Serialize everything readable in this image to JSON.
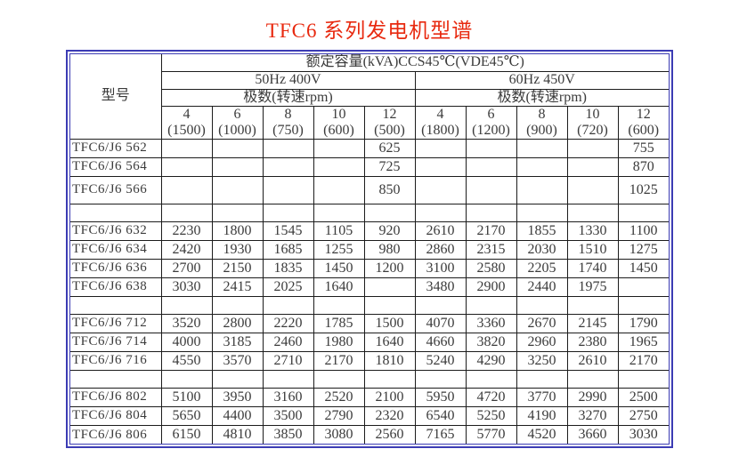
{
  "title": "TFC6 系列发电机型谱",
  "colors": {
    "title_red": "#e8290f",
    "frame_navy": "#3c3cb4",
    "model_divider_light_blue": "#5bc2ee",
    "grid_black": "#1c1c1c",
    "cell_text": "#3b3b3b"
  },
  "table": {
    "model_header": "型号",
    "capacity_header": "额定容量(kVA)CCS45℃(VDE45℃)",
    "sections": [
      {
        "label": "50Hz 400V",
        "poles_header": "极数(转速rpm)",
        "columns": [
          {
            "poles": "4",
            "rpm": "(1500)"
          },
          {
            "poles": "6",
            "rpm": "(1000)"
          },
          {
            "poles": "8",
            "rpm": "(750)"
          },
          {
            "poles": "10",
            "rpm": "(600)"
          },
          {
            "poles": "12",
            "rpm": "(500)"
          }
        ]
      },
      {
        "label": "60Hz 450V",
        "poles_header": "极数(转速rpm)",
        "columns": [
          {
            "poles": "4",
            "rpm": "(1800)"
          },
          {
            "poles": "6",
            "rpm": "(1200)"
          },
          {
            "poles": "8",
            "rpm": "(900)"
          },
          {
            "poles": "10",
            "rpm": "(720)"
          },
          {
            "poles": "12",
            "rpm": "(600)"
          }
        ]
      }
    ],
    "groups": [
      {
        "rows": [
          {
            "model": "TFC6/J6 562",
            "values": [
              "",
              "",
              "",
              "",
              "625",
              "",
              "",
              "",
              "",
              "755"
            ]
          },
          {
            "model": "TFC6/J6 564",
            "values": [
              "",
              "",
              "",
              "",
              "725",
              "",
              "",
              "",
              "",
              "870"
            ]
          },
          {
            "model": "TFC6/J6 566",
            "values": [
              "",
              "",
              "",
              "",
              "850",
              "",
              "",
              "",
              "",
              "1025"
            ],
            "tall": true
          }
        ]
      },
      {
        "rows": [
          {
            "model": "TFC6/J6 632",
            "values": [
              "2230",
              "1800",
              "1545",
              "1105",
              "920",
              "2610",
              "2170",
              "1855",
              "1330",
              "1100"
            ]
          },
          {
            "model": "TFC6/J6 634",
            "values": [
              "2420",
              "1930",
              "1685",
              "1255",
              "980",
              "2860",
              "2315",
              "2030",
              "1510",
              "1275"
            ]
          },
          {
            "model": "TFC6/J6 636",
            "values": [
              "2700",
              "2150",
              "1835",
              "1450",
              "1200",
              "3100",
              "2580",
              "2205",
              "1740",
              "1450"
            ]
          },
          {
            "model": "TFC6/J6 638",
            "values": [
              "3030",
              "2415",
              "2025",
              "1640",
              "",
              "3480",
              "2900",
              "2440",
              "1975",
              ""
            ]
          }
        ]
      },
      {
        "rows": [
          {
            "model": "TFC6/J6 712",
            "values": [
              "3520",
              "2800",
              "2220",
              "1785",
              "1500",
              "4070",
              "3360",
              "2670",
              "2145",
              "1790"
            ]
          },
          {
            "model": "TFC6/J6 714",
            "values": [
              "4000",
              "3185",
              "2460",
              "1980",
              "1640",
              "4660",
              "3820",
              "2960",
              "2380",
              "1965"
            ]
          },
          {
            "model": "TFC6/J6 716",
            "values": [
              "4550",
              "3570",
              "2710",
              "2170",
              "1810",
              "5240",
              "4290",
              "3250",
              "2610",
              "2170"
            ]
          }
        ]
      },
      {
        "rows": [
          {
            "model": "TFC6/J6 802",
            "values": [
              "5100",
              "3950",
              "3160",
              "2520",
              "2100",
              "5950",
              "4720",
              "3770",
              "2990",
              "2500"
            ]
          },
          {
            "model": "TFC6/J6 804",
            "values": [
              "5650",
              "4400",
              "3500",
              "2790",
              "2320",
              "6540",
              "5250",
              "4190",
              "3270",
              "2750"
            ]
          },
          {
            "model": "TFC6/J6 806",
            "values": [
              "6150",
              "4810",
              "3850",
              "3080",
              "2560",
              "7165",
              "5770",
              "4520",
              "3660",
              "3030"
            ]
          }
        ]
      }
    ]
  }
}
